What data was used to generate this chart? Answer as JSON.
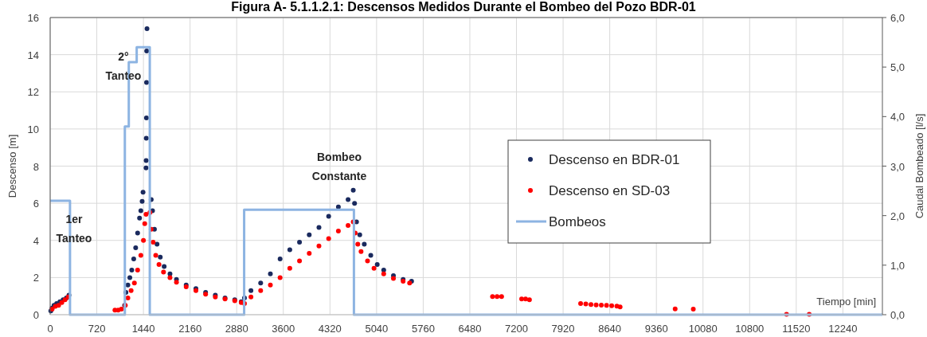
{
  "chart_data": {
    "type": "scatter",
    "title": "Figura A- 5.1.1.2.1: Descensos Medidos Durante el Bombeo del Pozo BDR-01",
    "xlabel": "Tiempo [min]",
    "ylabel": "Descenso [m]",
    "y2label": "Caudal Bombeado [l/s]",
    "xlim": [
      0,
      12850
    ],
    "xticks": [
      0,
      720,
      1440,
      2160,
      2880,
      3600,
      4320,
      5040,
      5760,
      6480,
      7200,
      7920,
      8640,
      9360,
      10080,
      10800,
      11520,
      12240
    ],
    "ylim": [
      0,
      16
    ],
    "yticks": [
      0,
      2,
      4,
      6,
      8,
      10,
      12,
      14,
      16
    ],
    "y2lim": [
      0,
      6
    ],
    "y2ticks": [
      {
        "value": 0,
        "label": "0,0"
      },
      {
        "value": 1,
        "label": "1,0"
      },
      {
        "value": 2,
        "label": "2,0"
      },
      {
        "value": 3,
        "label": "3,0"
      },
      {
        "value": 4,
        "label": "4,0"
      },
      {
        "value": 5,
        "label": "5,0"
      },
      {
        "value": 6,
        "label": "6,0"
      }
    ],
    "grid": true,
    "legend": "right",
    "marker": "circle",
    "annotations": [
      "1er\nTanteo",
      "2°\nTanteo",
      "Bombeo\nConstante"
    ],
    "series": [
      {
        "name": "Descenso en BDR-01",
        "color": "#1a2a5e",
        "x": [
          10,
          30,
          60,
          100,
          150,
          200,
          250,
          290,
          1150,
          1170,
          1200,
          1230,
          1260,
          1290,
          1320,
          1350,
          1380,
          1400,
          1420,
          1434,
          1480,
          1482,
          1484,
          1486,
          1488,
          1490,
          1495,
          1560,
          1580,
          1610,
          1650,
          1700,
          1760,
          1850,
          1950,
          2100,
          2250,
          2400,
          2550,
          2700,
          2850,
          2950,
          3000,
          3100,
          3250,
          3400,
          3550,
          3700,
          3850,
          4000,
          4150,
          4300,
          4450,
          4600,
          4680,
          4700,
          4730,
          4780,
          4850,
          4950,
          5050,
          5150,
          5300,
          5450,
          5580
        ],
        "values": [
          0.2,
          0.35,
          0.5,
          0.6,
          0.7,
          0.8,
          0.9,
          1.05,
          0.5,
          1.2,
          1.6,
          2.0,
          2.4,
          3.0,
          3.6,
          4.4,
          5.2,
          5.6,
          6.1,
          6.6,
          7.9,
          8.3,
          9.5,
          10.6,
          12.5,
          14.2,
          15.4,
          6.2,
          5.6,
          4.6,
          3.8,
          3.1,
          2.6,
          2.2,
          1.9,
          1.6,
          1.4,
          1.2,
          1.05,
          0.9,
          0.8,
          0.7,
          0.9,
          1.3,
          1.7,
          2.2,
          3.0,
          3.5,
          3.9,
          4.3,
          4.7,
          5.3,
          5.8,
          6.2,
          6.7,
          6.0,
          5.0,
          4.3,
          3.8,
          3.2,
          2.7,
          2.4,
          2.1,
          1.9,
          1.8
        ]
      },
      {
        "name": "Descenso en SD-03",
        "color": "#ff0000",
        "x": [
          30,
          80,
          130,
          180,
          230,
          280,
          1000,
          1050,
          1100,
          1160,
          1200,
          1250,
          1300,
          1350,
          1400,
          1440,
          1460,
          1480,
          1540,
          1560,
          1590,
          1630,
          1680,
          1750,
          1850,
          1950,
          2100,
          2250,
          2400,
          2550,
          2700,
          2850,
          2950,
          3000,
          3100,
          3250,
          3400,
          3550,
          3700,
          3850,
          4000,
          4150,
          4300,
          4450,
          4600,
          4680,
          4710,
          4750,
          4800,
          4900,
          5000,
          5150,
          5300,
          5450,
          5550,
          6830,
          6900,
          6970,
          7280,
          7340,
          7400,
          8190,
          8270,
          8350,
          8430,
          8510,
          8590,
          8670,
          8750,
          8800,
          9650,
          9930,
          11370,
          11720
        ],
        "values": [
          0.3,
          0.45,
          0.5,
          0.65,
          0.8,
          0.95,
          0.25,
          0.25,
          0.3,
          0.5,
          0.9,
          1.3,
          1.7,
          2.4,
          3.2,
          4.0,
          4.9,
          5.4,
          5.5,
          4.6,
          3.9,
          3.2,
          2.7,
          2.3,
          2.0,
          1.75,
          1.5,
          1.3,
          1.1,
          0.95,
          0.85,
          0.75,
          0.65,
          0.6,
          0.95,
          1.3,
          1.6,
          2.0,
          2.5,
          2.9,
          3.3,
          3.7,
          4.1,
          4.5,
          4.8,
          5.0,
          4.4,
          3.8,
          3.4,
          2.9,
          2.5,
          2.2,
          1.95,
          1.8,
          1.7,
          0.98,
          0.98,
          0.98,
          0.85,
          0.85,
          0.8,
          0.6,
          0.58,
          0.55,
          0.53,
          0.52,
          0.5,
          0.48,
          0.46,
          0.42,
          0.31,
          0.3,
          0.02,
          0.02
        ]
      },
      {
        "name": "Bombeos",
        "type": "step",
        "axis": "y2",
        "marker": "none",
        "color": "#8db4e2",
        "x": [
          0,
          306,
          1153,
          1214,
          1336,
          1538,
          2995,
          4690,
          12850
        ],
        "values": [
          2.3,
          0,
          3.8,
          5.1,
          5.4,
          0,
          2.12,
          0,
          0
        ]
      }
    ]
  }
}
